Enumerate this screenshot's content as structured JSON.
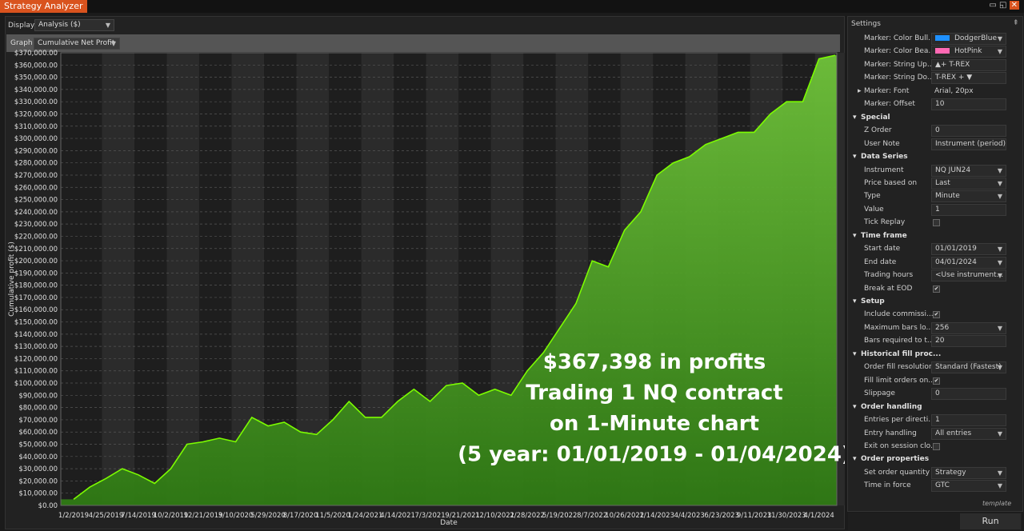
{
  "window": {
    "title": "Strategy Analyzer"
  },
  "display": {
    "label": "Display",
    "value": "Analysis ($)"
  },
  "graph": {
    "label": "Graph",
    "value": "Cumulative Net Profit"
  },
  "chart_data": {
    "type": "area",
    "ylabel": "Cumulative profit ($)",
    "xlabel": "Date",
    "color": "#7cfc00",
    "grid": true,
    "categories": [
      "1/2/2019",
      null,
      "4/25/2019",
      null,
      "7/14/2019",
      null,
      "10/2/2019",
      null,
      "12/21/2019",
      null,
      "3/10/2020",
      null,
      "5/29/2020",
      null,
      "8/17/2020",
      null,
      "11/5/2020",
      null,
      "1/24/2021",
      null,
      "4/14/2021",
      null,
      "7/3/2021",
      null,
      "9/21/2021",
      null,
      "12/10/2021",
      null,
      "2/28/2022",
      null,
      "5/19/2022",
      null,
      "8/7/2022",
      null,
      "10/26/2022",
      null,
      "1/14/2023",
      null,
      "4/4/2023",
      null,
      "6/23/2023",
      null,
      "9/11/2023",
      null,
      "11/30/2023",
      null,
      "4/1/2024",
      null
    ],
    "values": [
      5000,
      15000,
      22000,
      30000,
      25000,
      18000,
      30000,
      50000,
      52000,
      55000,
      52000,
      72000,
      65000,
      68000,
      60000,
      58000,
      70000,
      85000,
      72000,
      72000,
      85000,
      95000,
      85000,
      98000,
      100000,
      90000,
      95000,
      90000,
      110000,
      125000,
      145000,
      165000,
      200000,
      195000,
      225000,
      240000,
      270000,
      280000,
      285000,
      295000,
      300000,
      305000,
      305000,
      320000,
      330000,
      330000,
      365000,
      368000
    ],
    "ylim": [
      0,
      370000
    ],
    "yticks": [
      {
        "value": 0,
        "label": "$0.00"
      },
      {
        "value": 10000,
        "label": "$10,000.00"
      },
      {
        "value": 20000,
        "label": "$20,000.00"
      },
      {
        "value": 30000,
        "label": "$30,000.00"
      },
      {
        "value": 40000,
        "label": "$40,000.00"
      },
      {
        "value": 50000,
        "label": "$50,000.00"
      },
      {
        "value": 60000,
        "label": "$60,000.00"
      },
      {
        "value": 70000,
        "label": "$70,000.00"
      },
      {
        "value": 80000,
        "label": "$80,000.00"
      },
      {
        "value": 90000,
        "label": "$90,000.00"
      },
      {
        "value": 100000,
        "label": "$100,000.00"
      },
      {
        "value": 110000,
        "label": "$110,000.00"
      },
      {
        "value": 120000,
        "label": "$120,000.00"
      },
      {
        "value": 130000,
        "label": "$130,000.00"
      },
      {
        "value": 140000,
        "label": "$140,000.00"
      },
      {
        "value": 150000,
        "label": "$150,000.00"
      },
      {
        "value": 160000,
        "label": "$160,000.00"
      },
      {
        "value": 170000,
        "label": "$170,000.00"
      },
      {
        "value": 180000,
        "label": "$180,000.00"
      },
      {
        "value": 190000,
        "label": "$190,000.00"
      },
      {
        "value": 200000,
        "label": "$200,000.00"
      },
      {
        "value": 210000,
        "label": "$210,000.00"
      },
      {
        "value": 220000,
        "label": "$220,000.00"
      },
      {
        "value": 230000,
        "label": "$230,000.00"
      },
      {
        "value": 240000,
        "label": "$240,000.00"
      },
      {
        "value": 250000,
        "label": "$250,000.00"
      },
      {
        "value": 260000,
        "label": "$260,000.00"
      },
      {
        "value": 270000,
        "label": "$270,000.00"
      },
      {
        "value": 280000,
        "label": "$280,000.00"
      },
      {
        "value": 290000,
        "label": "$290,000.00"
      },
      {
        "value": 300000,
        "label": "$300,000.00"
      },
      {
        "value": 310000,
        "label": "$310,000.00"
      },
      {
        "value": 320000,
        "label": "$320,000.00"
      },
      {
        "value": 330000,
        "label": "$330,000.00"
      },
      {
        "value": 340000,
        "label": "$340,000.00"
      },
      {
        "value": 350000,
        "label": "$350,000.00"
      },
      {
        "value": 360000,
        "label": "$360,000.00"
      },
      {
        "value": 370000,
        "label": "$370,000.00"
      }
    ],
    "annotation": [
      "$367,398 in profits",
      "Trading 1 NQ contract",
      "on 1-Minute chart",
      "(5 year: 01/01/2019 - 01/04/2024)"
    ]
  },
  "settings": {
    "title": "Settings",
    "top_rows": [
      {
        "label": "Marker: Color Bull...",
        "value": "DodgerBlue",
        "swatch": "#1e90ff",
        "dropdown": true
      },
      {
        "label": "Marker: Color Bea...",
        "value": "HotPink",
        "swatch": "#ff69b4",
        "dropdown": true
      },
      {
        "label": "Marker: String Up...",
        "value": "▲+ T-REX"
      },
      {
        "label": "Marker: String Do...",
        "value": "T-REX + ▼"
      },
      {
        "label": "Marker: Font",
        "value": "Arial, 20px",
        "plain": true
      },
      {
        "label": "Marker: Offset",
        "value": "10"
      }
    ],
    "groups": [
      {
        "name": "Special",
        "rows": [
          {
            "label": "Z Order",
            "value": "0"
          },
          {
            "label": "User Note",
            "value": "Instrument (period)"
          }
        ]
      },
      {
        "name": "Data Series",
        "rows": [
          {
            "label": "Instrument",
            "value": "NQ JUN24",
            "dropdown": true
          },
          {
            "label": "Price based on",
            "value": "Last",
            "dropdown": true
          },
          {
            "label": "Type",
            "value": "Minute",
            "dropdown": true
          },
          {
            "label": "Value",
            "value": "1"
          },
          {
            "label": "Tick Replay",
            "checked": false
          }
        ]
      },
      {
        "name": "Time frame",
        "rows": [
          {
            "label": "Start date",
            "value": "01/01/2019",
            "dropdown": true
          },
          {
            "label": "End date",
            "value": "04/01/2024",
            "dropdown": true
          },
          {
            "label": "Trading hours",
            "value": "<Use instrument...",
            "dropdown": true
          },
          {
            "label": "Break at EOD",
            "checked": true
          }
        ]
      },
      {
        "name": "Setup",
        "rows": [
          {
            "label": "Include commissi...",
            "checked": true
          },
          {
            "label": "Maximum bars lo...",
            "value": "256",
            "dropdown": true
          },
          {
            "label": "Bars required to t...",
            "value": "20"
          }
        ]
      },
      {
        "name": "Historical fill proc...",
        "rows": [
          {
            "label": "Order fill resolution",
            "value": "Standard (Fastest)",
            "dropdown": true
          },
          {
            "label": "Fill limit orders on...",
            "checked": true
          },
          {
            "label": "Slippage",
            "value": "0"
          }
        ]
      },
      {
        "name": "Order handling",
        "rows": [
          {
            "label": "Entries per directi...",
            "value": "1"
          },
          {
            "label": "Entry handling",
            "value": "All entries",
            "dropdown": true
          },
          {
            "label": "Exit on session clo...",
            "checked": false
          }
        ]
      },
      {
        "name": "Order properties",
        "rows": [
          {
            "label": "Set order quantity",
            "value": "Strategy",
            "dropdown": true
          },
          {
            "label": "Time in force",
            "value": "GTC",
            "dropdown": true
          }
        ]
      }
    ],
    "template": "template"
  },
  "run_button": "Run"
}
